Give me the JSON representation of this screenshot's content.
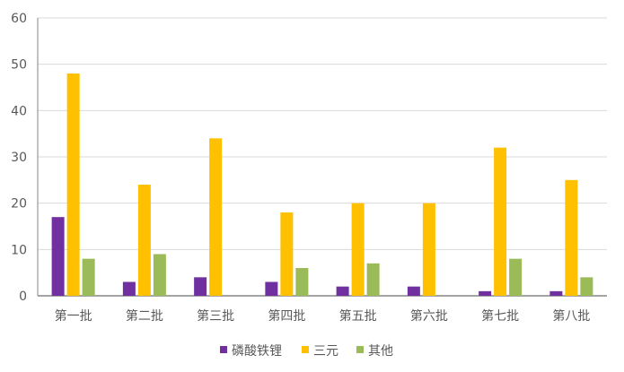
{
  "chart_data": {
    "type": "bar",
    "title": "",
    "xlabel": "",
    "ylabel": "",
    "categories": [
      "第一批",
      "第二批",
      "第三批",
      "第四批",
      "第五批",
      "第六批",
      "第七批",
      "第八批"
    ],
    "series": [
      {
        "name": "磷酸铁锂",
        "color": "#7030a0",
        "values": [
          17,
          3,
          4,
          3,
          2,
          2,
          1,
          1
        ]
      },
      {
        "name": "三元",
        "color": "#ffc000",
        "values": [
          48,
          24,
          34,
          18,
          20,
          20,
          32,
          25
        ]
      },
      {
        "name": "其他",
        "color": "#9bbb59",
        "values": [
          8,
          9,
          0,
          6,
          7,
          0,
          8,
          4
        ]
      }
    ],
    "ylim": [
      0,
      60
    ],
    "yticks": [
      0,
      10,
      20,
      30,
      40,
      50,
      60
    ],
    "grid": true,
    "legend": "bottom"
  }
}
